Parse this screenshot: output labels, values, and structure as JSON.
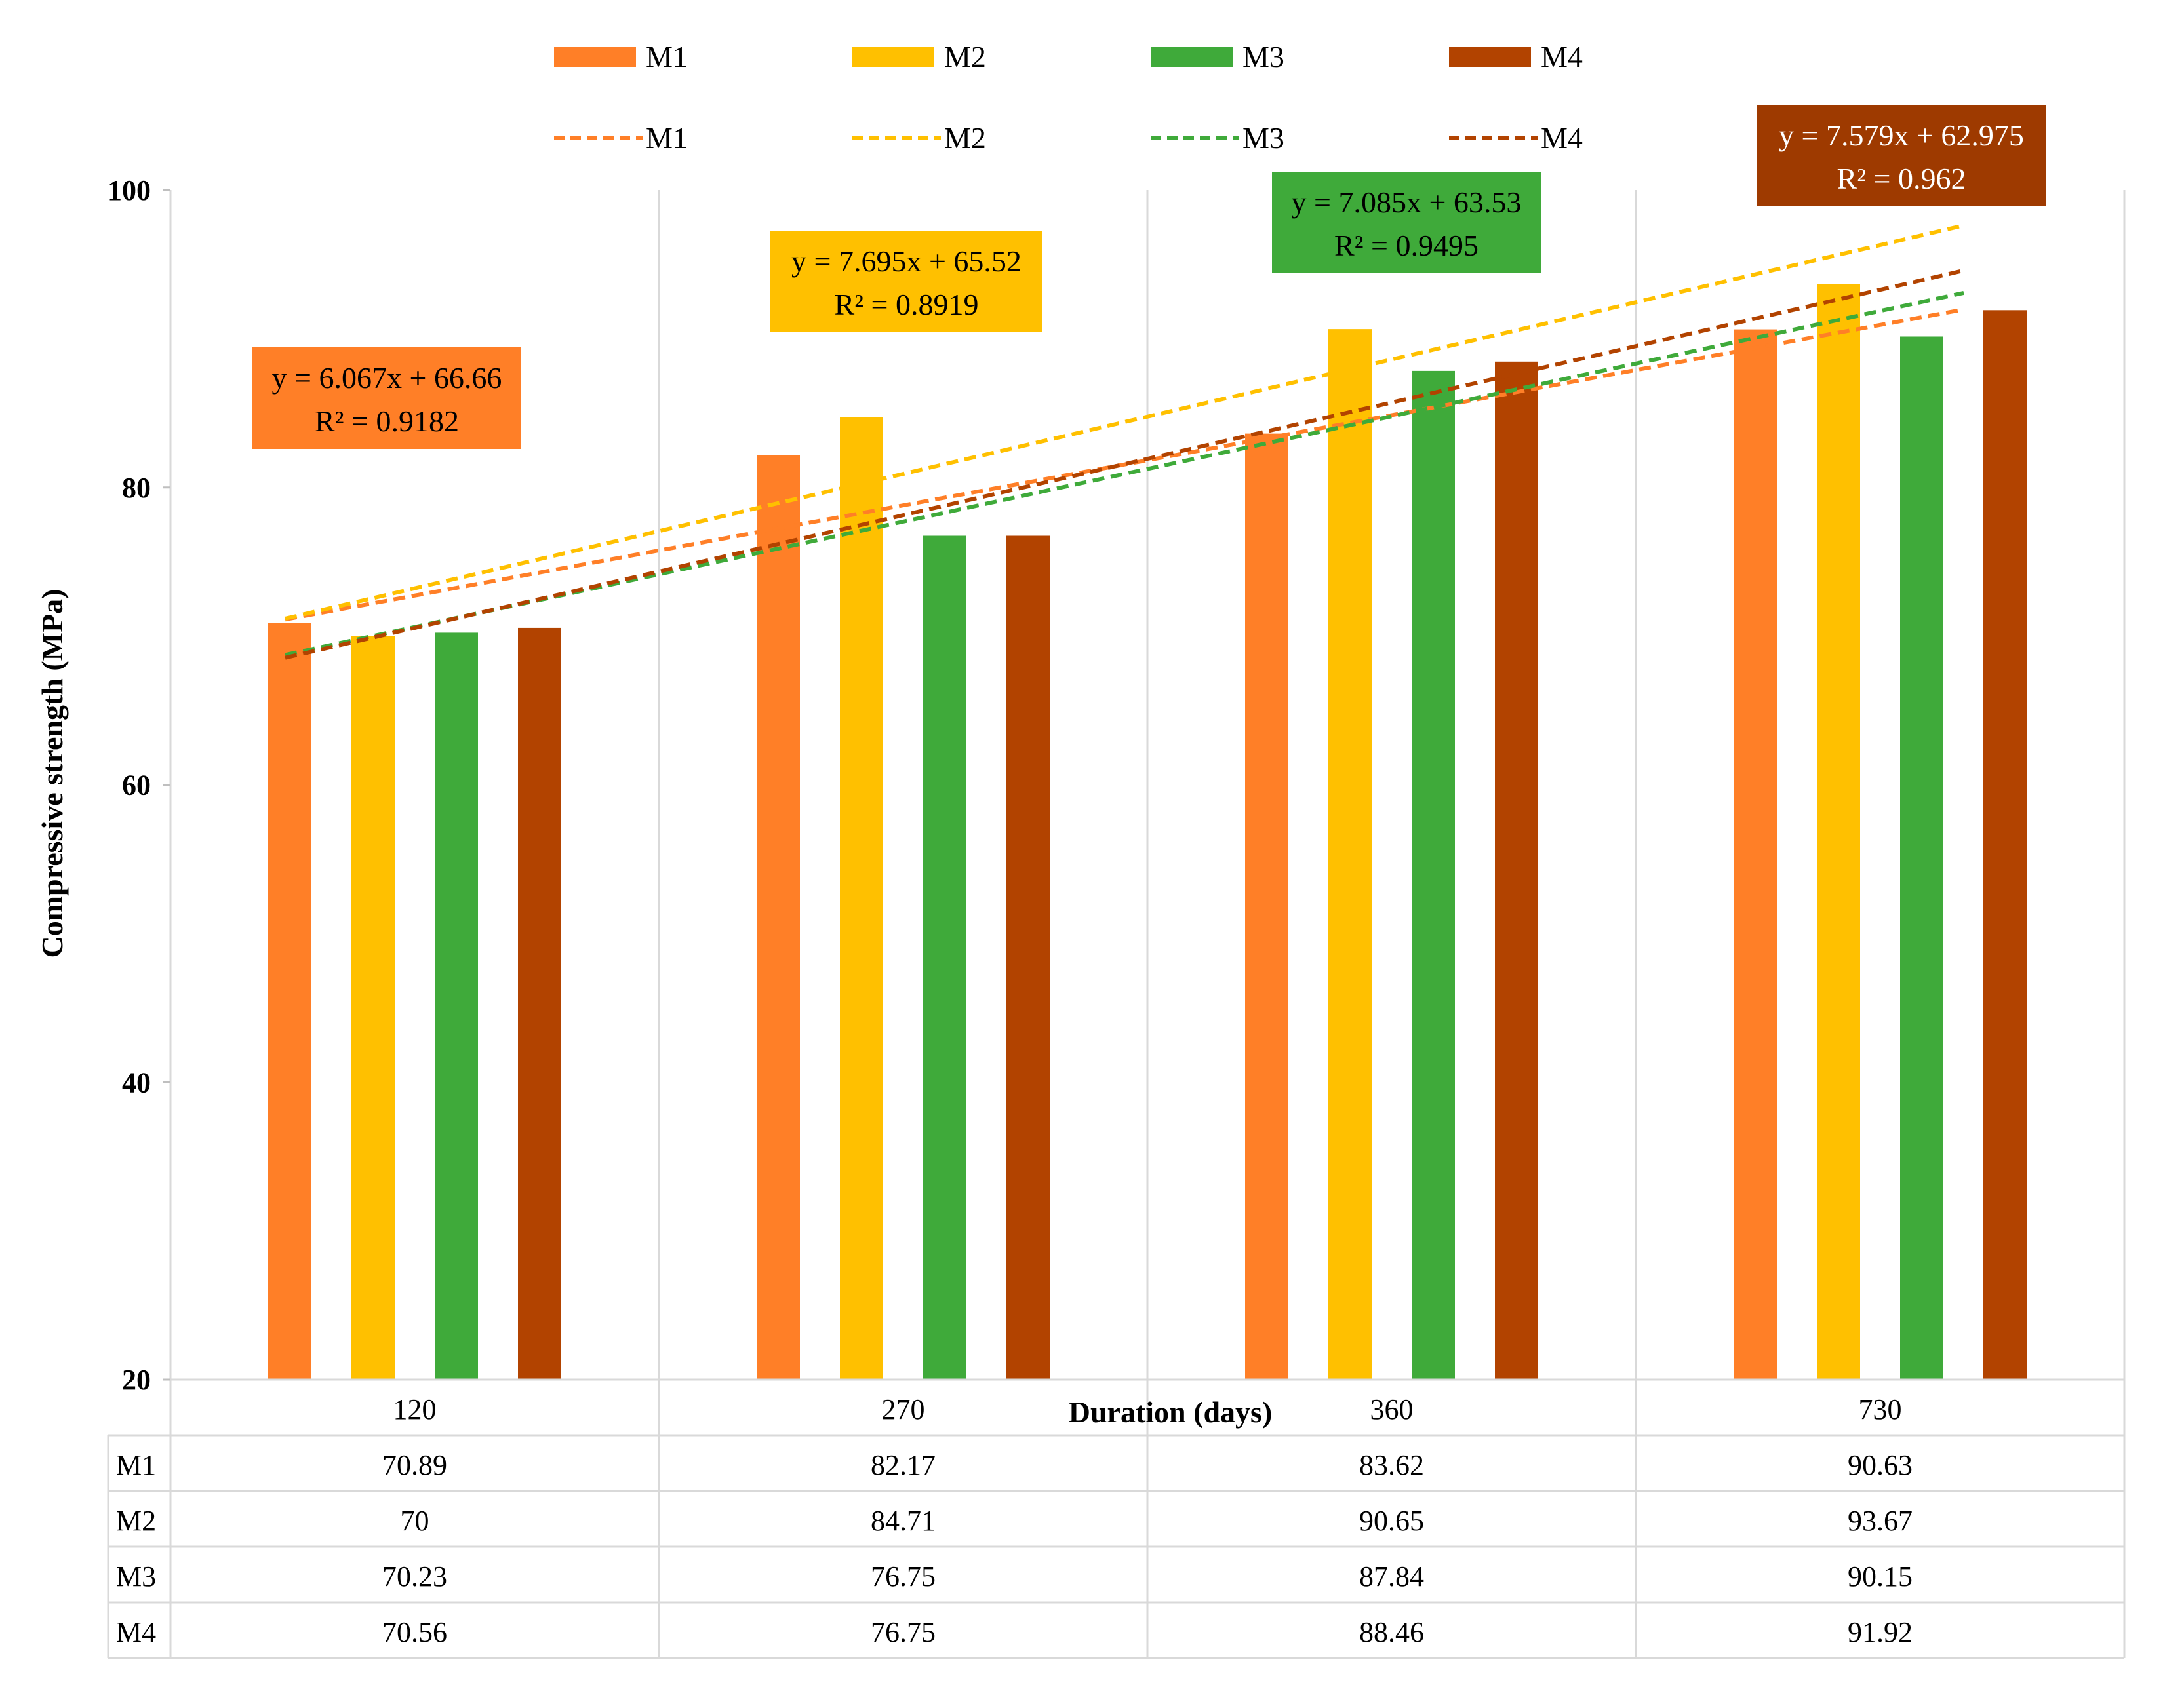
{
  "chart_data": {
    "type": "bar",
    "title": "",
    "xlabel": "Duration (days)",
    "ylabel": "Compressive strength (MPa)",
    "ylim": [
      20,
      100
    ],
    "yticks": [
      20,
      40,
      60,
      80,
      100
    ],
    "grid": "vertical category separators",
    "categories": [
      "120",
      "270",
      "360",
      "730"
    ],
    "series": [
      {
        "name": "M1",
        "color": "#FF7F27",
        "values": [
          70.89,
          82.17,
          83.62,
          90.63
        ]
      },
      {
        "name": "M2",
        "color": "#FFC000",
        "values": [
          70,
          84.71,
          90.65,
          93.67
        ]
      },
      {
        "name": "M3",
        "color": "#3FAA3A",
        "values": [
          70.23,
          76.75,
          87.84,
          90.15
        ]
      },
      {
        "name": "M4",
        "color": "#B24300",
        "values": [
          70.56,
          76.75,
          88.46,
          91.92
        ]
      }
    ],
    "trendlines": [
      {
        "series": "M1",
        "slope": 6.067,
        "intercept": 66.66,
        "equation": "y = 6.067x + 66.66",
        "r2": "R² = 0.9182",
        "box_color": "#FF7F27",
        "text_color": "#000000"
      },
      {
        "series": "M2",
        "slope": 7.695,
        "intercept": 65.52,
        "equation": "y = 7.695x + 65.52",
        "r2": "R² = 0.8919",
        "box_color": "#FFC000",
        "text_color": "#000000"
      },
      {
        "series": "M3",
        "slope": 7.085,
        "intercept": 63.53,
        "equation": "y = 7.085x + 63.53",
        "r2": "R² = 0.9495",
        "box_color": "#3FAA3A",
        "text_color": "#000000"
      },
      {
        "series": "M4",
        "slope": 7.579,
        "intercept": 62.975,
        "equation": "y = 7.579x + 62.975",
        "r2": "R² = 0.962",
        "box_color": "#9E3A00",
        "text_color": "#ffffff"
      }
    ],
    "legend": {
      "placement": "top",
      "bar_entries": [
        "M1",
        "M2",
        "M3",
        "M4"
      ],
      "line_entries": [
        "M1",
        "M2",
        "M3",
        "M4"
      ]
    },
    "data_table": {
      "row_labels": [
        "M1",
        "M2",
        "M3",
        "M4"
      ],
      "rows": [
        [
          "70.89",
          "82.17",
          "83.62",
          "90.63"
        ],
        [
          "70",
          "84.71",
          "90.65",
          "93.67"
        ],
        [
          "70.23",
          "76.75",
          "87.84",
          "90.15"
        ],
        [
          "70.56",
          "76.75",
          "88.46",
          "91.92"
        ]
      ]
    }
  }
}
